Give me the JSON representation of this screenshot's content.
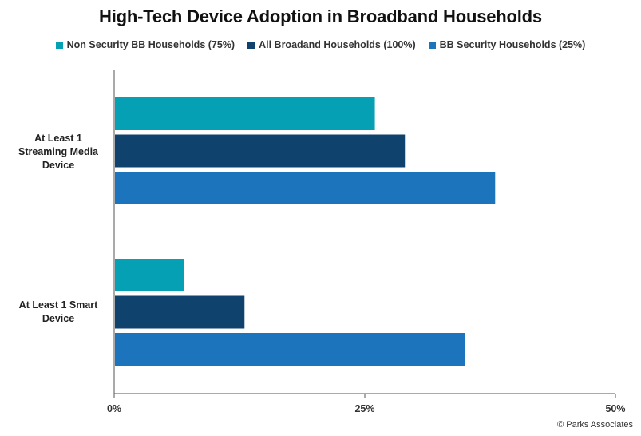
{
  "chart_data": {
    "type": "bar",
    "orientation": "horizontal",
    "title": "High-Tech Device Adoption in Broadband  Households",
    "categories": [
      "At Least 1 Streaming Media Device",
      "At Least 1 Smart Device"
    ],
    "series": [
      {
        "name": "Non Security BB Households (75%)",
        "color": "#05a0b4",
        "values": [
          26,
          7
        ]
      },
      {
        "name": "All Broadand Households (100%)",
        "color": "#0f426c",
        "values": [
          29,
          13
        ]
      },
      {
        "name": "BB Security Households (25%)",
        "color": "#1c75bc",
        "values": [
          38,
          35
        ]
      }
    ],
    "xlim": [
      0,
      50
    ],
    "xticks": [
      "0%",
      "25%",
      "50%"
    ],
    "legend_position": "top",
    "grid": false,
    "credit": "© Parks Associates"
  },
  "category_lines": [
    [
      "At Least 1",
      "Streaming Media",
      "Device"
    ],
    [
      "At Least 1 Smart",
      "Device"
    ]
  ]
}
